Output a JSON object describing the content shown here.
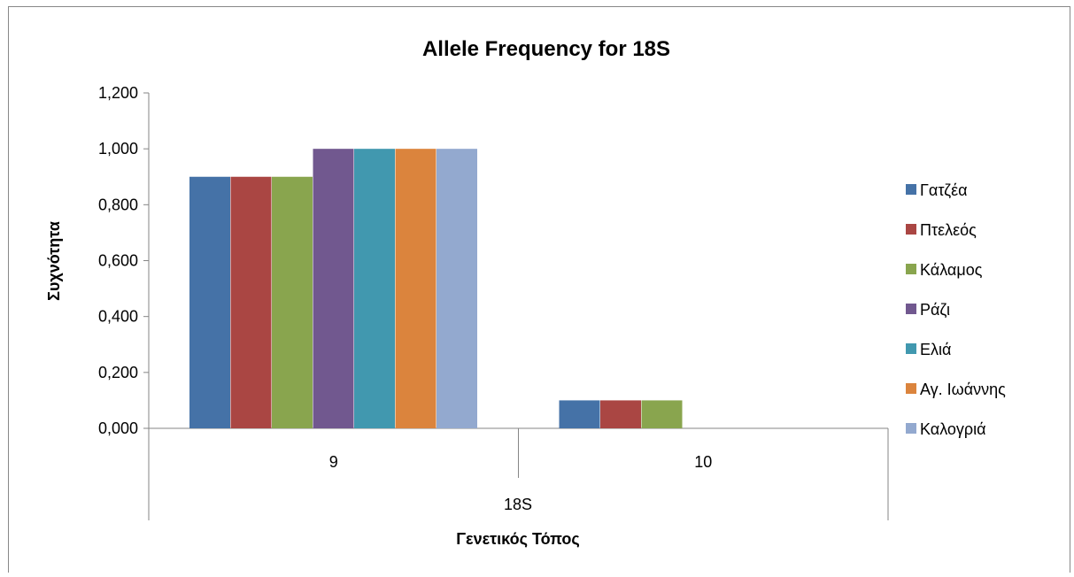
{
  "chart_data": {
    "type": "bar",
    "title": "Allele Frequency for 18S",
    "xlabel": "Γενετικός Τόπος",
    "ylabel": "Συχνότητα",
    "group_label": "18S",
    "categories": [
      "9",
      "10"
    ],
    "ylim": [
      0,
      1.2
    ],
    "yticks": [
      "0,000",
      "0,200",
      "0,400",
      "0,600",
      "0,800",
      "1,000",
      "1,200"
    ],
    "ytick_values": [
      0,
      0.2,
      0.4,
      0.6,
      0.8,
      1.0,
      1.2
    ],
    "grid": false,
    "legend_position": "right",
    "series": [
      {
        "name": "Γατζέα",
        "color": "#4572A7",
        "values": [
          0.9,
          0.1
        ]
      },
      {
        "name": "Πτελεός",
        "color": "#AA4643",
        "values": [
          0.9,
          0.1
        ]
      },
      {
        "name": "Κάλαμος",
        "color": "#89A54E",
        "values": [
          0.9,
          0.1
        ]
      },
      {
        "name": "Ράζι",
        "color": "#71588F",
        "values": [
          1.0,
          0.0
        ]
      },
      {
        "name": "Ελιά",
        "color": "#4198AF",
        "values": [
          1.0,
          0.0
        ]
      },
      {
        "name": "Αγ. Ιωάννης",
        "color": "#DB843D",
        "values": [
          1.0,
          0.0
        ]
      },
      {
        "name": "Καλογριά",
        "color": "#93A9CF",
        "values": [
          1.0,
          0.0
        ]
      }
    ]
  }
}
